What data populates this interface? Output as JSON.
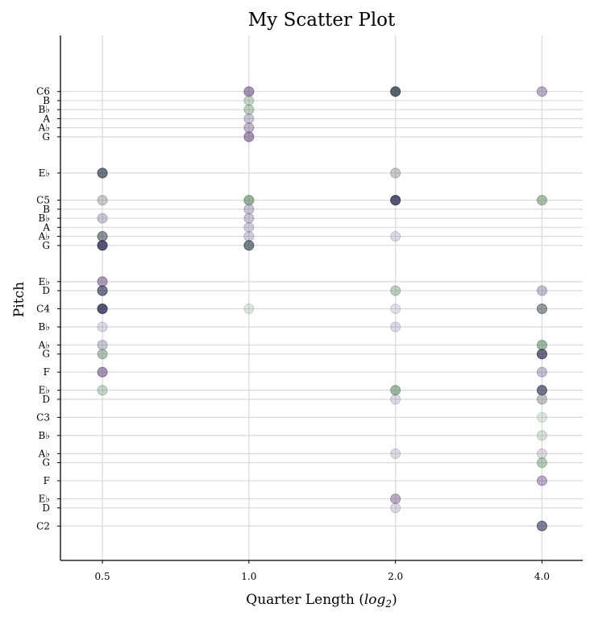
{
  "chart_data": {
    "type": "scatter",
    "title": "My Scatter Plot",
    "xlabel": "Quarter Length (",
    "xlabel_math": "log",
    "xlabel_sub": "2",
    "xlabel_end": ")",
    "ylabel": "Pitch",
    "x_scale": "log2",
    "grid": true,
    "x_ticks": [
      0.5,
      1.0,
      2.0,
      4.0
    ],
    "x_tick_labels": [
      "0.5",
      "1.0",
      "2.0",
      "4.0"
    ],
    "xlim": [
      0.41,
      4.85
    ],
    "ylim": [
      32.2,
      90.2
    ],
    "y_ticks": [
      {
        "midi": 36,
        "label": "C2"
      },
      {
        "midi": 38,
        "label": "D"
      },
      {
        "midi": 39,
        "label": "E♭"
      },
      {
        "midi": 41,
        "label": "F"
      },
      {
        "midi": 43,
        "label": "G"
      },
      {
        "midi": 44,
        "label": "A♭"
      },
      {
        "midi": 46,
        "label": "B♭"
      },
      {
        "midi": 48,
        "label": "C3"
      },
      {
        "midi": 50,
        "label": "D"
      },
      {
        "midi": 51,
        "label": "E♭"
      },
      {
        "midi": 53,
        "label": "F"
      },
      {
        "midi": 55,
        "label": "G"
      },
      {
        "midi": 56,
        "label": "A♭"
      },
      {
        "midi": 58,
        "label": "B♭"
      },
      {
        "midi": 60,
        "label": "C4"
      },
      {
        "midi": 62,
        "label": "D"
      },
      {
        "midi": 63,
        "label": "E♭"
      },
      {
        "midi": 67,
        "label": "G"
      },
      {
        "midi": 68,
        "label": "A♭"
      },
      {
        "midi": 69,
        "label": "A"
      },
      {
        "midi": 70,
        "label": "B♭"
      },
      {
        "midi": 71,
        "label": "B"
      },
      {
        "midi": 72,
        "label": "C5"
      },
      {
        "midi": 75,
        "label": "E♭"
      },
      {
        "midi": 79,
        "label": "G"
      },
      {
        "midi": 80,
        "label": "A♭"
      },
      {
        "midi": 81,
        "label": "A"
      },
      {
        "midi": 82,
        "label": "B♭"
      },
      {
        "midi": 83,
        "label": "B"
      },
      {
        "midi": 84,
        "label": "C6"
      }
    ],
    "colors": {
      "purple": "#6a4c80",
      "green": "#5e8a62",
      "slate": "#2e3d4a",
      "navy": "#2c2c52",
      "lavender": "#7a7098",
      "gray": "#6a6a6a"
    },
    "points": [
      {
        "x": 1.0,
        "y": 84,
        "color": "purple",
        "alpha": 0.6
      },
      {
        "x": 1.0,
        "y": 83,
        "color": "green",
        "alpha": 0.35
      },
      {
        "x": 1.0,
        "y": 82,
        "color": "green",
        "alpha": 0.4
      },
      {
        "x": 1.0,
        "y": 81,
        "color": "lavender",
        "alpha": 0.4
      },
      {
        "x": 1.0,
        "y": 80,
        "color": "purple",
        "alpha": 0.4
      },
      {
        "x": 1.0,
        "y": 79,
        "color": "purple",
        "alpha": 0.6
      },
      {
        "x": 1.0,
        "y": 72,
        "color": "green",
        "alpha": 0.65
      },
      {
        "x": 1.0,
        "y": 71,
        "color": "lavender",
        "alpha": 0.4
      },
      {
        "x": 1.0,
        "y": 70,
        "color": "lavender",
        "alpha": 0.4
      },
      {
        "x": 1.0,
        "y": 69,
        "color": "lavender",
        "alpha": 0.35
      },
      {
        "x": 1.0,
        "y": 68,
        "color": "lavender",
        "alpha": 0.35
      },
      {
        "x": 1.0,
        "y": 67,
        "color": "slate",
        "alpha": 0.65
      },
      {
        "x": 1.0,
        "y": 60,
        "color": "green",
        "alpha": 0.2
      },
      {
        "x": 0.5,
        "y": 75,
        "color": "slate",
        "alpha": 0.7
      },
      {
        "x": 0.5,
        "y": 72,
        "color": "gray",
        "alpha": 0.35
      },
      {
        "x": 0.5,
        "y": 70,
        "color": "lavender",
        "alpha": 0.4
      },
      {
        "x": 0.5,
        "y": 68,
        "color": "slate",
        "alpha": 0.55
      },
      {
        "x": 0.5,
        "y": 67,
        "color": "navy",
        "alpha": 0.8
      },
      {
        "x": 0.5,
        "y": 63,
        "color": "purple",
        "alpha": 0.55
      },
      {
        "x": 0.5,
        "y": 62,
        "color": "navy",
        "alpha": 0.65
      },
      {
        "x": 0.5,
        "y": 60,
        "color": "navy",
        "alpha": 0.8
      },
      {
        "x": 0.5,
        "y": 58,
        "color": "lavender",
        "alpha": 0.25
      },
      {
        "x": 0.5,
        "y": 56,
        "color": "lavender",
        "alpha": 0.4
      },
      {
        "x": 0.5,
        "y": 55,
        "color": "green",
        "alpha": 0.5
      },
      {
        "x": 0.5,
        "y": 53,
        "color": "purple",
        "alpha": 0.6
      },
      {
        "x": 0.5,
        "y": 51,
        "color": "green",
        "alpha": 0.35
      },
      {
        "x": 2.0,
        "y": 84,
        "color": "slate",
        "alpha": 0.8
      },
      {
        "x": 2.0,
        "y": 75,
        "color": "gray",
        "alpha": 0.35
      },
      {
        "x": 2.0,
        "y": 72,
        "color": "navy",
        "alpha": 0.8
      },
      {
        "x": 2.0,
        "y": 68,
        "color": "lavender",
        "alpha": 0.25
      },
      {
        "x": 2.0,
        "y": 62,
        "color": "green",
        "alpha": 0.4
      },
      {
        "x": 2.0,
        "y": 60,
        "color": "lavender",
        "alpha": 0.2
      },
      {
        "x": 2.0,
        "y": 58,
        "color": "lavender",
        "alpha": 0.25
      },
      {
        "x": 2.0,
        "y": 51,
        "color": "green",
        "alpha": 0.6
      },
      {
        "x": 2.0,
        "y": 50,
        "color": "lavender",
        "alpha": 0.25
      },
      {
        "x": 2.0,
        "y": 44,
        "color": "lavender",
        "alpha": 0.25
      },
      {
        "x": 2.0,
        "y": 39,
        "color": "purple",
        "alpha": 0.45
      },
      {
        "x": 2.0,
        "y": 38,
        "color": "lavender",
        "alpha": 0.25
      },
      {
        "x": 4.0,
        "y": 84,
        "color": "purple",
        "alpha": 0.45
      },
      {
        "x": 4.0,
        "y": 72,
        "color": "green",
        "alpha": 0.55
      },
      {
        "x": 4.0,
        "y": 62,
        "color": "lavender",
        "alpha": 0.45
      },
      {
        "x": 4.0,
        "y": 60,
        "color": "slate",
        "alpha": 0.5
      },
      {
        "x": 4.0,
        "y": 56,
        "color": "green",
        "alpha": 0.6
      },
      {
        "x": 4.0,
        "y": 55,
        "color": "navy",
        "alpha": 0.7
      },
      {
        "x": 4.0,
        "y": 53,
        "color": "lavender",
        "alpha": 0.45
      },
      {
        "x": 4.0,
        "y": 51,
        "color": "navy",
        "alpha": 0.65
      },
      {
        "x": 4.0,
        "y": 50,
        "color": "gray",
        "alpha": 0.4
      },
      {
        "x": 4.0,
        "y": 48,
        "color": "green",
        "alpha": 0.2
      },
      {
        "x": 4.0,
        "y": 46,
        "color": "green",
        "alpha": 0.25
      },
      {
        "x": 4.0,
        "y": 44,
        "color": "lavender",
        "alpha": 0.25
      },
      {
        "x": 4.0,
        "y": 43,
        "color": "green",
        "alpha": 0.45
      },
      {
        "x": 4.0,
        "y": 41,
        "color": "purple",
        "alpha": 0.45
      },
      {
        "x": 4.0,
        "y": 36,
        "color": "navy",
        "alpha": 0.6
      }
    ]
  }
}
